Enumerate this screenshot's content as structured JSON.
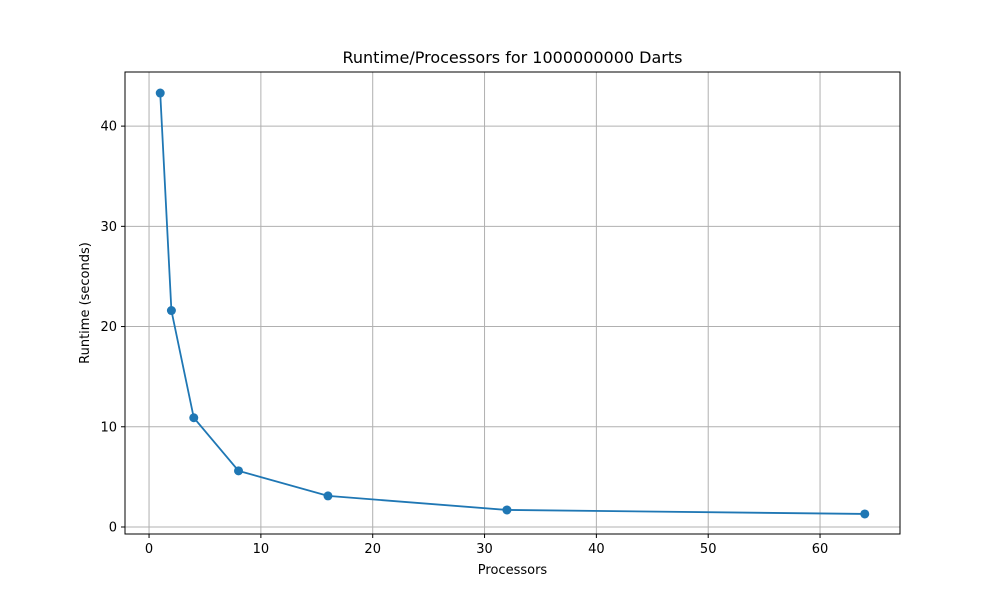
{
  "chart_data": {
    "type": "line",
    "title": "Runtime/Processors for 1000000000 Darts",
    "xlabel": "Processors",
    "ylabel": "Runtime (seconds)",
    "xlim": [
      -2.15,
      67.15
    ],
    "ylim": [
      -0.7,
      45.4
    ],
    "xticks": [
      0,
      10,
      20,
      30,
      40,
      50,
      60
    ],
    "yticks": [
      0,
      10,
      20,
      30,
      40
    ],
    "grid": true,
    "series": [
      {
        "color": "#1f77b4",
        "marker": "circle",
        "x": [
          1,
          2,
          4,
          8,
          16,
          32,
          64
        ],
        "y": [
          43.3,
          21.6,
          10.9,
          5.6,
          3.1,
          1.7,
          1.3
        ]
      }
    ]
  }
}
